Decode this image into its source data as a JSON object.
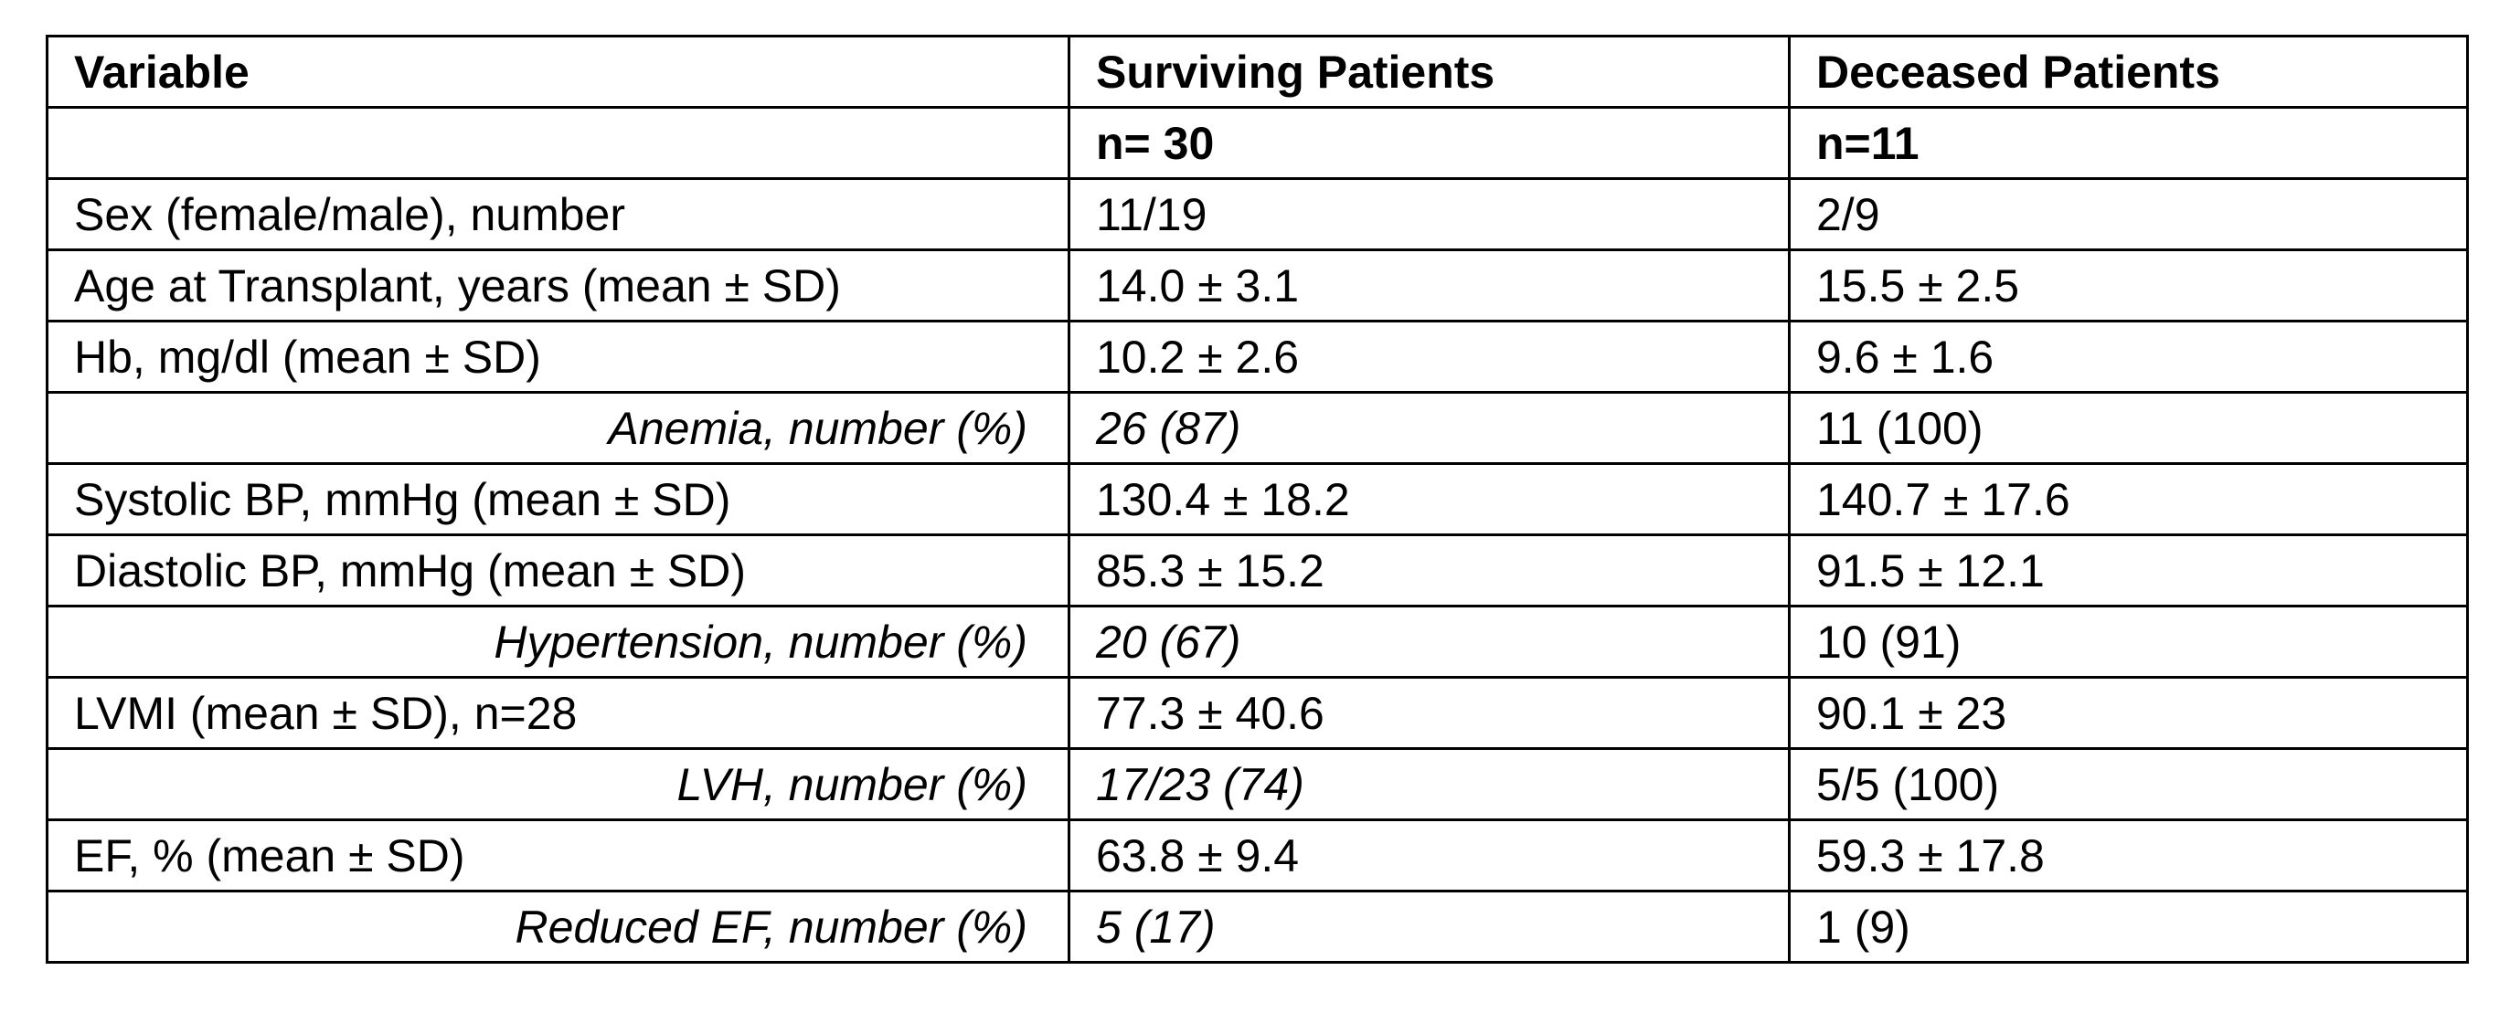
{
  "table": {
    "headers": [
      "Variable",
      "Surviving Patients",
      "Deceased Patients"
    ],
    "subheader": [
      "",
      "n= 30",
      "n=11"
    ],
    "rows": [
      {
        "variable": "Sex (female/male), number",
        "surviving": "11/19",
        "deceased": "2/9",
        "sub": false
      },
      {
        "variable": "Age at Transplant, years (mean ± SD)",
        "surviving": "14.0 ± 3.1",
        "deceased": "15.5 ± 2.5",
        "sub": false
      },
      {
        "variable": "Hb, mg/dl (mean ± SD)",
        "surviving": "10.2 ± 2.6",
        "deceased": "9.6 ± 1.6",
        "sub": false
      },
      {
        "variable": "Anemia, number (%)",
        "surviving": "26 (87)",
        "deceased": "11 (100)",
        "sub": true
      },
      {
        "variable": "Systolic BP, mmHg (mean ± SD)",
        "surviving": "130.4 ± 18.2",
        "deceased": "140.7 ± 17.6",
        "sub": false
      },
      {
        "variable": "Diastolic BP, mmHg (mean ± SD)",
        "surviving": "85.3 ± 15.2",
        "deceased": "91.5 ± 12.1",
        "sub": false
      },
      {
        "variable": "Hypertension, number (%)",
        "surviving": "20 (67)",
        "deceased": "10 (91)",
        "sub": true
      },
      {
        "variable": "LVMI (mean ± SD), n=28",
        "surviving": "77.3 ± 40.6",
        "deceased": "90.1 ± 23",
        "sub": false
      },
      {
        "variable": "LVH, number (%)",
        "surviving": "17/23 (74)",
        "deceased": "5/5 (100)",
        "sub": true
      },
      {
        "variable": "EF, % (mean ± SD)",
        "surviving": "63.8 ± 9.4",
        "deceased": "59.3 ± 17.8",
        "sub": false
      },
      {
        "variable": "Reduced EF, number (%)",
        "surviving": "5 (17)",
        "deceased": "1 (9)",
        "sub": true
      }
    ]
  }
}
